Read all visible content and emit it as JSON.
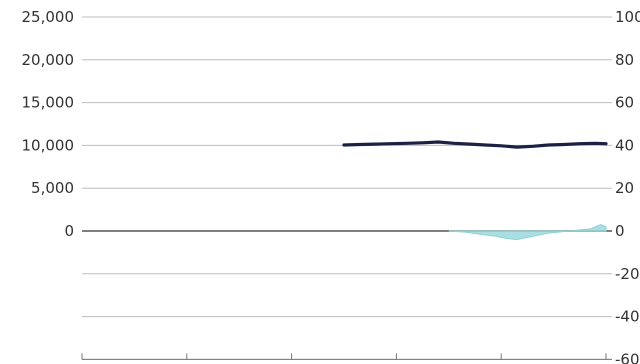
{
  "chart_data": {
    "type": "line",
    "title": "",
    "legend_text": "",
    "y_left": {
      "label": "",
      "ticks": [
        25000,
        20000,
        15000,
        10000,
        5000,
        0
      ],
      "tick_labels": [
        "25,000",
        "20,000",
        "15,000",
        "10,000",
        "5,000",
        "0"
      ],
      "range": [
        -15000,
        25000
      ]
    },
    "y_right": {
      "label": "",
      "ticks": [
        100,
        80,
        60,
        40,
        20,
        0,
        -20,
        -40,
        -60
      ],
      "tick_labels": [
        "100",
        "80",
        "60",
        "40",
        "20",
        "0",
        "-20",
        "-40",
        "-60"
      ],
      "range": [
        -60,
        100
      ]
    },
    "x_ticks_count": 6,
    "grid": true,
    "series": [
      {
        "name": "",
        "axis": "left",
        "color": "#1a2144",
        "style": "line",
        "x": [
          0.5,
          0.53,
          0.56,
          0.59,
          0.62,
          0.65,
          0.68,
          0.71,
          0.74,
          0.77,
          0.8,
          0.83,
          0.86,
          0.89,
          0.92,
          0.95,
          0.98,
          1.0
        ],
        "values": [
          10050,
          10100,
          10150,
          10200,
          10250,
          10300,
          10400,
          10250,
          10150,
          10050,
          9950,
          9800,
          9900,
          10050,
          10100,
          10200,
          10250,
          10200
        ]
      },
      {
        "name": "",
        "axis": "right",
        "color": "#8fd3d6",
        "style": "area",
        "x": [
          0.7,
          0.73,
          0.76,
          0.79,
          0.81,
          0.83,
          0.85,
          0.87,
          0.89,
          0.91,
          0.93,
          0.95,
          0.97,
          0.98,
          0.99,
          1.0
        ],
        "values": [
          0,
          -0.5,
          -1.5,
          -2.5,
          -3.5,
          -4,
          -3,
          -2,
          -1,
          -0.5,
          0,
          0.5,
          1,
          2,
          3,
          2
        ]
      }
    ]
  }
}
